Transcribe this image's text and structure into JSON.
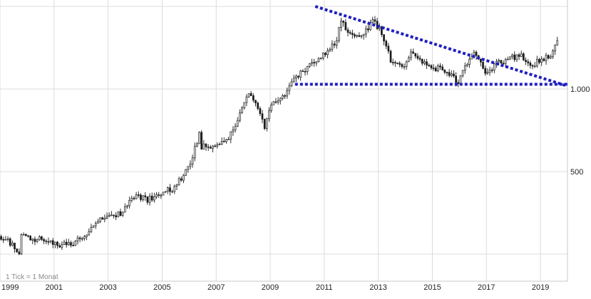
{
  "chart_data": {
    "type": "candlestick",
    "title": "",
    "xlabel": "",
    "ylabel": "",
    "y_scale": "log",
    "ylim": [
      230,
      2000
    ],
    "xlim": [
      "1999-01",
      "2019-12"
    ],
    "x_tick_labels": [
      "1999",
      "2001",
      "2003",
      "2005",
      "2007",
      "2009",
      "2011",
      "2013",
      "2015",
      "2017",
      "2019"
    ],
    "y_tick_labels": [
      {
        "value": 1000,
        "label": "1.000"
      },
      {
        "value": 500,
        "label": "500"
      }
    ],
    "grid": true,
    "note": "1 Tick = 1 Monat",
    "colors": {
      "up": "#ffffff",
      "down": "#1a1a1a",
      "wick": "#1a1a1a",
      "grid": "#dcdcdc",
      "trendline": "#1f1fbf"
    },
    "anchor_closes": [
      [
        "1999-01",
        290
      ],
      [
        "1999-06",
        270
      ],
      [
        "1999-09",
        255
      ],
      [
        "1999-10",
        300
      ],
      [
        "2000-01",
        285
      ],
      [
        "2000-06",
        285
      ],
      [
        "2001-01",
        270
      ],
      [
        "2001-06",
        270
      ],
      [
        "2002-01",
        285
      ],
      [
        "2002-06",
        320
      ],
      [
        "2003-01",
        350
      ],
      [
        "2003-06",
        350
      ],
      [
        "2004-01",
        410
      ],
      [
        "2004-06",
        395
      ],
      [
        "2005-01",
        425
      ],
      [
        "2005-06",
        435
      ],
      [
        "2006-01",
        530
      ],
      [
        "2006-05",
        690
      ],
      [
        "2006-06",
        615
      ],
      [
        "2007-01",
        630
      ],
      [
        "2007-06",
        660
      ],
      [
        "2008-01",
        880
      ],
      [
        "2008-03",
        960
      ],
      [
        "2008-06",
        890
      ],
      [
        "2008-10",
        730
      ],
      [
        "2009-01",
        890
      ],
      [
        "2009-06",
        935
      ],
      [
        "2009-12",
        1100
      ],
      [
        "2010-06",
        1230
      ],
      [
        "2011-01",
        1340
      ],
      [
        "2011-06",
        1500
      ],
      [
        "2011-08",
        1800
      ],
      [
        "2011-12",
        1570
      ],
      [
        "2012-06",
        1600
      ],
      [
        "2012-10",
        1760
      ],
      [
        "2013-01",
        1660
      ],
      [
        "2013-04",
        1450
      ],
      [
        "2013-06",
        1250
      ],
      [
        "2013-12",
        1200
      ],
      [
        "2014-03",
        1340
      ],
      [
        "2014-06",
        1300
      ],
      [
        "2014-12",
        1200
      ],
      [
        "2015-06",
        1170
      ],
      [
        "2015-12",
        1060
      ],
      [
        "2016-03",
        1230
      ],
      [
        "2016-07",
        1340
      ],
      [
        "2016-12",
        1150
      ],
      [
        "2017-06",
        1250
      ],
      [
        "2017-12",
        1300
      ],
      [
        "2018-04",
        1320
      ],
      [
        "2018-08",
        1200
      ],
      [
        "2018-12",
        1280
      ],
      [
        "2019-03",
        1295
      ],
      [
        "2019-05",
        1300
      ],
      [
        "2019-06",
        1410
      ],
      [
        "2019-08",
        1530
      ]
    ],
    "annotations": [
      {
        "type": "trendline",
        "style": "dotted",
        "from": {
          "x": "2010-09",
          "y": 2000
        },
        "to": {
          "x": "2020-01",
          "y": 1025
        }
      },
      {
        "type": "support-line",
        "style": "dotted",
        "from": {
          "x": "2009-12",
          "y": 1040
        },
        "to": {
          "x": "2020-01",
          "y": 1040
        }
      }
    ]
  }
}
